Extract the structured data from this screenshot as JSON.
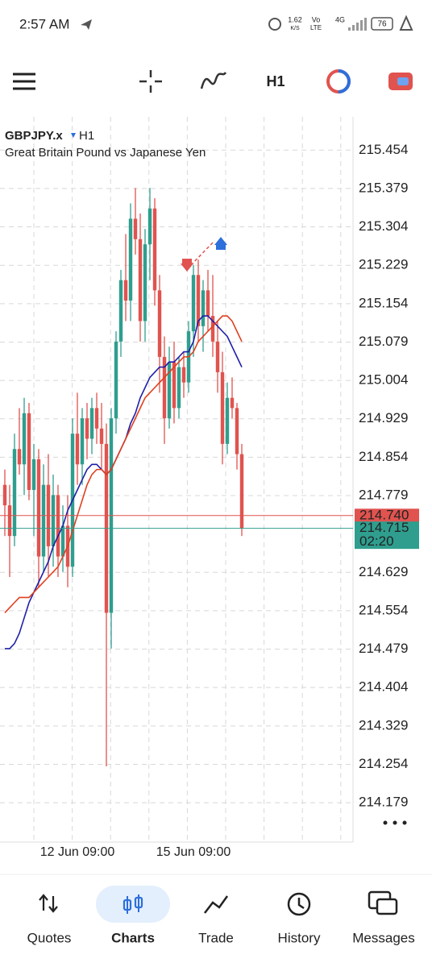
{
  "status_bar": {
    "time": "2:57 AM",
    "speed": "1.62",
    "speed_unit": "K/S",
    "volte_top": "Vo",
    "volte_bottom": "LTE",
    "network": "4G",
    "battery": "76"
  },
  "toolbar": {
    "timeframe": "H1"
  },
  "chart_data": {
    "type": "candlestick",
    "symbol": "GBPJPY.x",
    "timeframe": "H1",
    "subtitle": "Great Britain Pound vs Japanese Yen",
    "categories": [
      null,
      null,
      null,
      null,
      null,
      null,
      null,
      null,
      null,
      null,
      null,
      null,
      null,
      null,
      null,
      "12 Jun 09:00",
      null,
      null,
      null,
      null,
      null,
      null,
      null,
      null,
      null,
      null,
      null,
      null,
      null,
      null,
      null,
      null,
      null,
      null,
      null,
      null,
      null,
      null,
      null,
      "15 Jun 09:00",
      null,
      null,
      null,
      null,
      null,
      null,
      null,
      null,
      null,
      null
    ],
    "open": [
      214.8,
      214.76,
      214.7,
      214.87,
      214.84,
      214.94,
      214.79,
      214.85,
      214.66,
      214.8,
      214.68,
      214.78,
      214.66,
      214.72,
      214.64,
      214.9,
      214.84,
      214.93,
      214.89,
      214.95,
      214.91,
      214.88,
      214.55,
      214.93,
      215.08,
      215.2,
      215.16,
      215.32,
      215.28,
      215.12,
      215.27,
      215.34,
      215.18,
      215.05,
      214.93,
      215.04,
      214.95,
      215.03,
      215.0,
      215.1,
      215.21,
      215.11,
      215.18,
      215.13,
      215.08,
      215.02,
      214.88,
      214.97,
      214.95,
      214.86
    ],
    "high": [
      214.83,
      214.8,
      214.9,
      214.95,
      214.97,
      214.96,
      214.88,
      214.87,
      214.84,
      214.86,
      214.82,
      214.8,
      214.76,
      214.78,
      214.93,
      214.98,
      214.95,
      214.96,
      214.97,
      214.98,
      214.96,
      214.92,
      214.95,
      215.1,
      215.22,
      215.29,
      215.35,
      215.38,
      215.33,
      215.3,
      215.38,
      215.36,
      215.21,
      215.09,
      215.07,
      215.08,
      215.05,
      215.06,
      215.12,
      215.23,
      215.24,
      215.2,
      215.22,
      215.21,
      215.12,
      215.06,
      215.0,
      215.01,
      214.96,
      214.88
    ],
    "low": [
      214.7,
      214.62,
      214.68,
      214.82,
      214.78,
      214.77,
      214.7,
      214.6,
      214.63,
      214.62,
      214.64,
      214.62,
      214.63,
      214.6,
      214.62,
      214.8,
      214.8,
      214.85,
      214.86,
      214.88,
      214.83,
      214.25,
      214.48,
      214.9,
      215.05,
      215.12,
      215.12,
      215.25,
      215.08,
      215.08,
      215.2,
      215.15,
      214.98,
      214.88,
      214.91,
      214.92,
      214.93,
      214.97,
      214.98,
      215.05,
      215.08,
      215.06,
      215.1,
      215.05,
      214.98,
      214.84,
      214.86,
      214.93,
      214.83,
      214.7
    ],
    "close": [
      214.76,
      214.7,
      214.87,
      214.84,
      214.94,
      214.79,
      214.85,
      214.66,
      214.8,
      214.68,
      214.78,
      214.66,
      214.72,
      214.64,
      214.9,
      214.84,
      214.93,
      214.89,
      214.95,
      214.91,
      214.88,
      214.55,
      214.93,
      215.08,
      215.2,
      215.16,
      215.32,
      215.28,
      215.12,
      215.27,
      215.34,
      215.18,
      215.05,
      214.93,
      215.04,
      214.95,
      215.03,
      215.0,
      215.1,
      215.21,
      215.11,
      215.18,
      215.13,
      215.08,
      215.02,
      214.88,
      214.97,
      214.95,
      214.86,
      214.715
    ],
    "up_color": "#2f9e8e",
    "down_color": "#e0534f",
    "lines": [
      {
        "color": "#1f1fa8",
        "values": [
          214.48,
          214.48,
          214.49,
          214.51,
          214.54,
          214.57,
          214.59,
          214.61,
          214.63,
          214.65,
          214.68,
          214.7,
          214.72,
          214.75,
          214.77,
          214.79,
          214.81,
          214.83,
          214.84,
          214.84,
          214.83,
          214.82,
          214.83,
          214.85,
          214.87,
          214.89,
          214.92,
          214.94,
          214.97,
          214.99,
          215.01,
          215.02,
          215.03,
          215.03,
          215.04,
          215.04,
          215.05,
          215.06,
          215.06,
          215.08,
          215.12,
          215.13,
          215.13,
          215.12,
          215.11,
          215.1,
          215.09,
          215.07,
          215.05,
          215.03
        ]
      },
      {
        "color": "#e0401f",
        "values": [
          214.55,
          214.56,
          214.57,
          214.58,
          214.58,
          214.58,
          214.59,
          214.6,
          214.61,
          214.62,
          214.63,
          214.64,
          214.66,
          214.68,
          214.71,
          214.74,
          214.77,
          214.8,
          214.82,
          214.83,
          214.83,
          214.82,
          214.83,
          214.85,
          214.87,
          214.89,
          214.91,
          214.93,
          214.95,
          214.97,
          214.98,
          214.99,
          215.0,
          215.01,
          215.02,
          215.03,
          215.04,
          215.05,
          215.05,
          215.06,
          215.08,
          215.09,
          215.1,
          215.11,
          215.12,
          215.13,
          215.13,
          215.12,
          215.1,
          215.08
        ]
      }
    ],
    "ylim": [
      214.102,
      215.519
    ],
    "yticks": [
      215.454,
      215.379,
      215.304,
      215.229,
      215.154,
      215.079,
      215.004,
      214.929,
      214.854,
      214.779,
      214.629,
      214.554,
      214.479,
      214.404,
      214.329,
      214.254,
      214.179
    ],
    "grid": true,
    "price_lines": [
      {
        "value": 214.74,
        "label": "214.740",
        "color": "#e0534f"
      },
      {
        "value": 214.715,
        "label": "214.715",
        "timer": "02:20",
        "color": "#2f9e8e"
      }
    ]
  },
  "nav": {
    "items": [
      "Quotes",
      "Charts",
      "Trade",
      "History",
      "Messages"
    ],
    "active": 1
  }
}
